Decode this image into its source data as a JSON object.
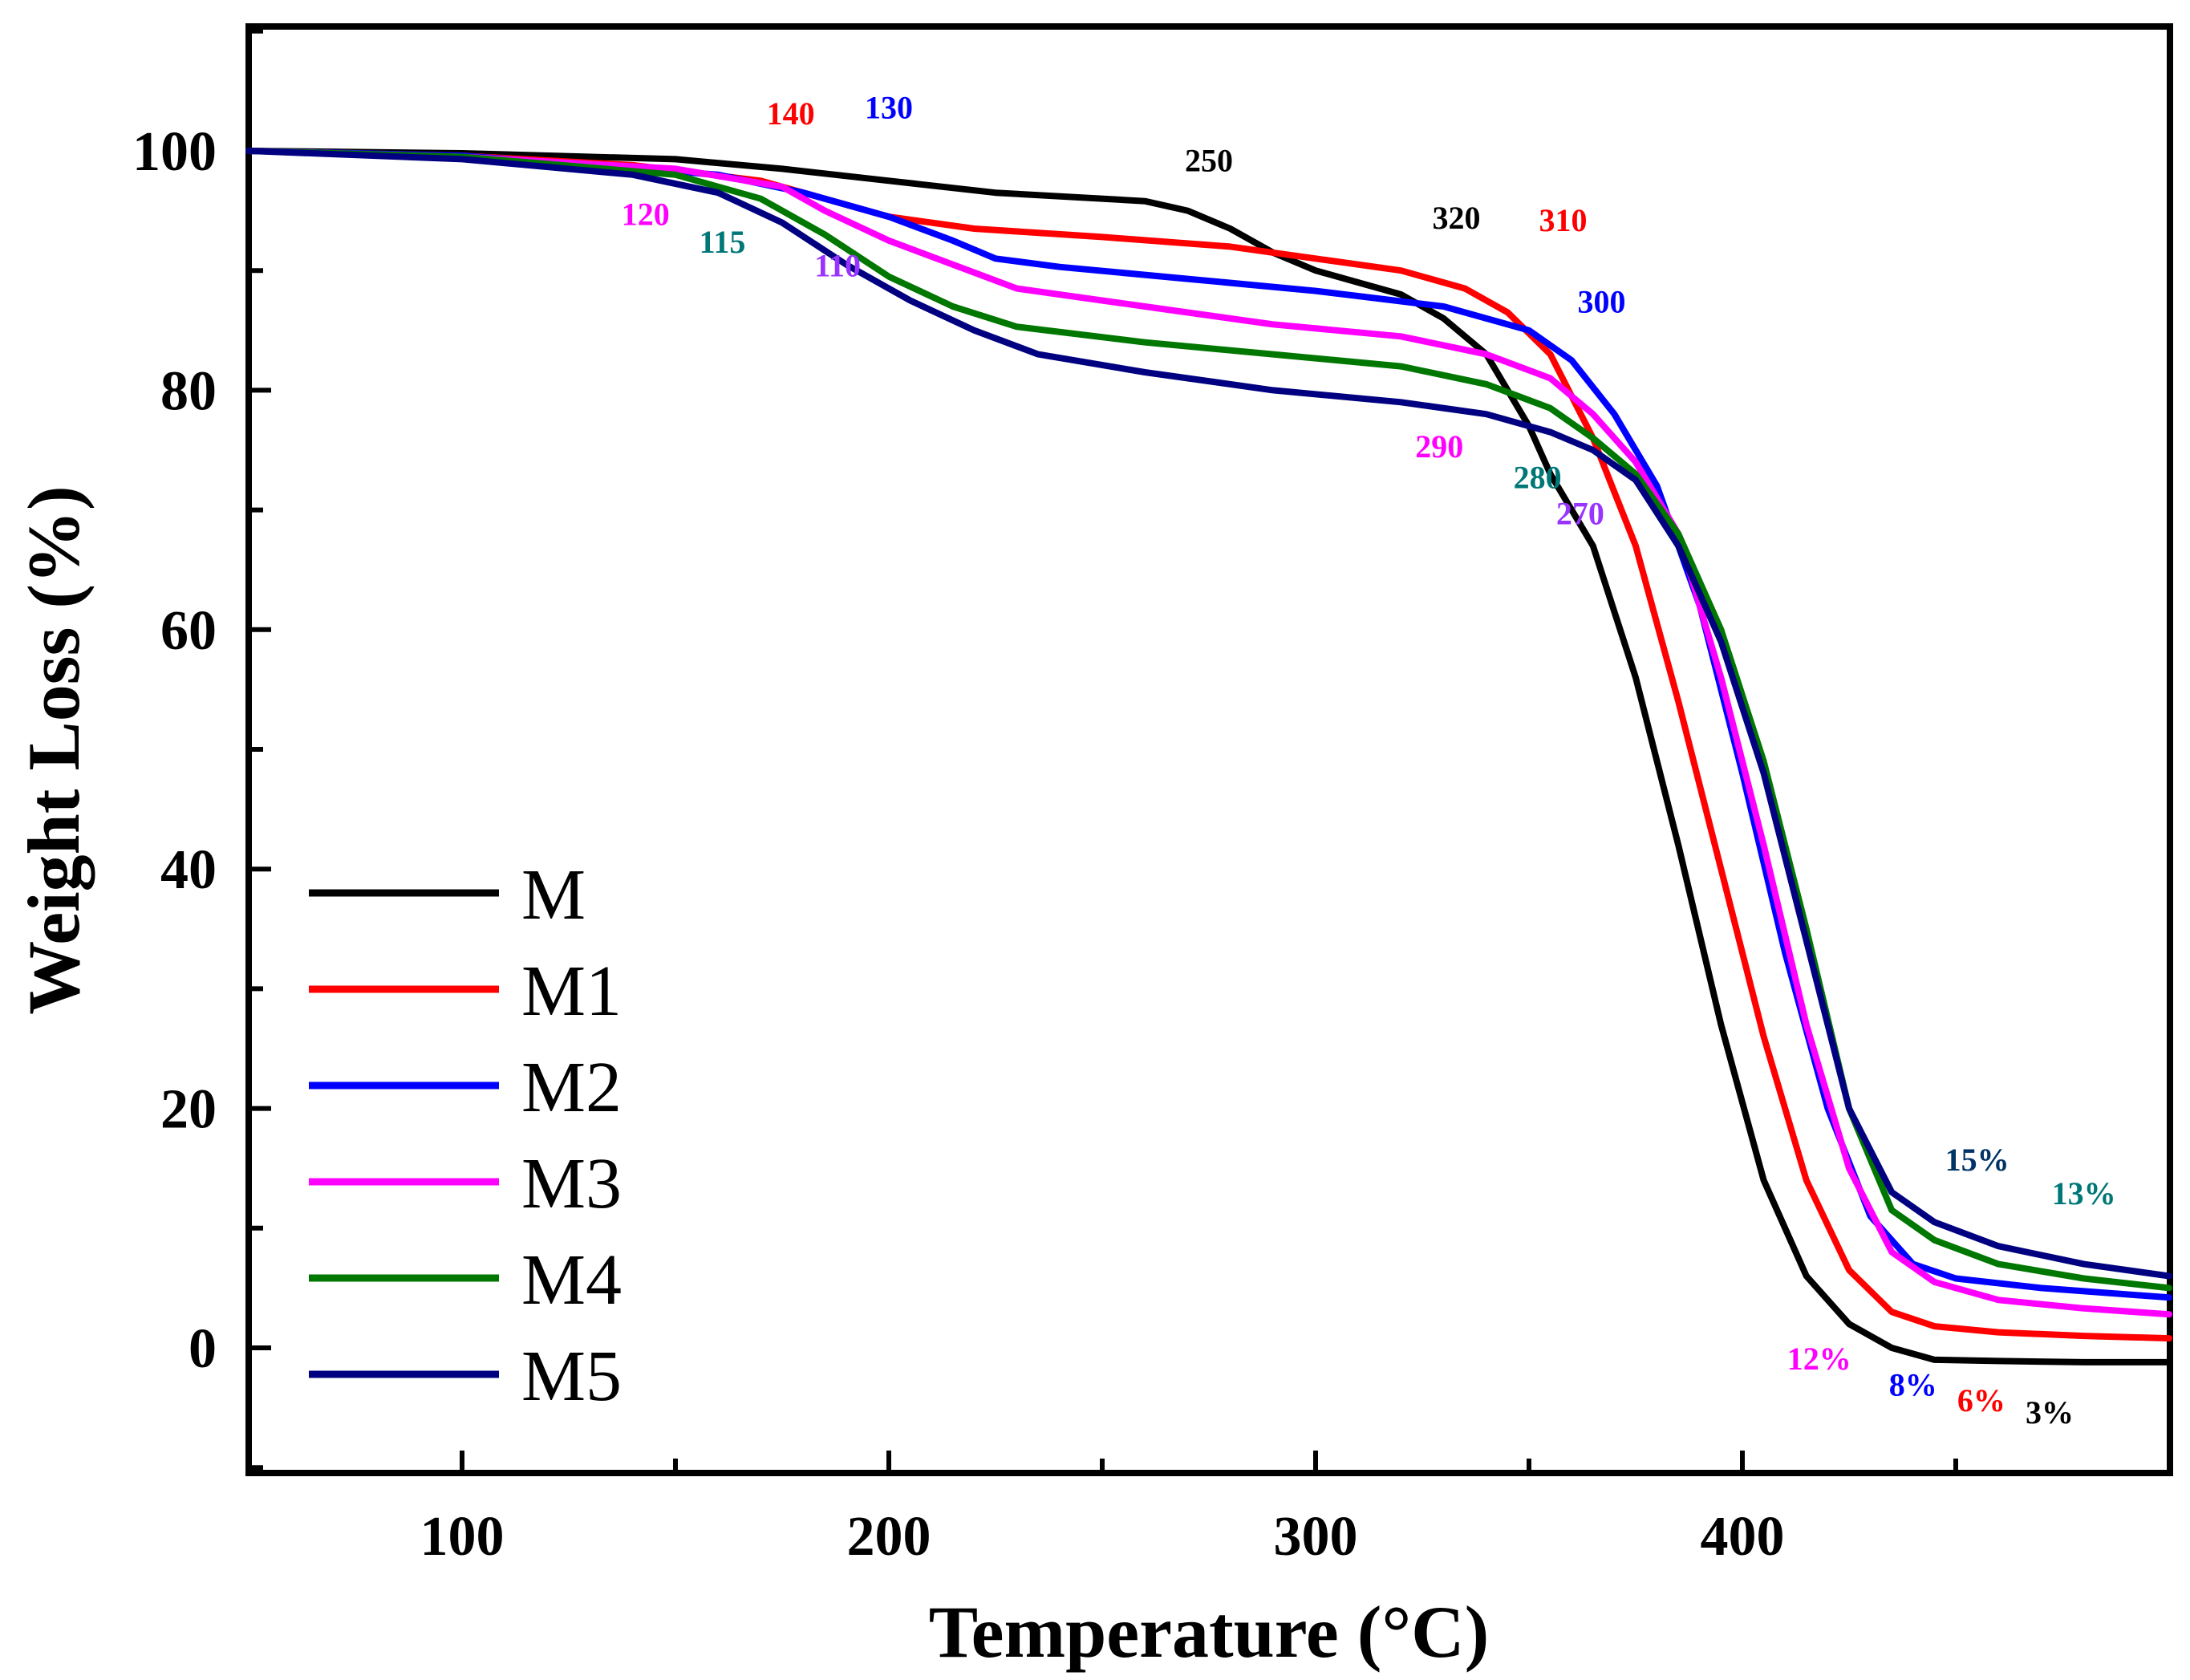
{
  "chart_data": {
    "type": "line",
    "title": "",
    "xlabel": "Temperature (°C)",
    "ylabel": "Weight Loss (%)",
    "xlim": [
      50,
      500
    ],
    "ylim": [
      -10,
      110
    ],
    "xticks": [
      100,
      200,
      300,
      400
    ],
    "yticks": [
      0,
      20,
      40,
      60,
      80,
      100
    ],
    "xtick_labels": [
      "100",
      "200",
      "300",
      "400"
    ],
    "ytick_labels": [
      "0",
      "20",
      "40",
      "60",
      "80",
      "100"
    ],
    "grid": false,
    "legend_position": "bottom-left",
    "series": [
      {
        "name": "M",
        "color": "#000000",
        "points": [
          [
            50,
            100
          ],
          [
            100,
            99.8
          ],
          [
            150,
            99.3
          ],
          [
            175,
            98.5
          ],
          [
            200,
            97.5
          ],
          [
            225,
            96.5
          ],
          [
            260,
            95.8
          ],
          [
            270,
            95
          ],
          [
            280,
            93.5
          ],
          [
            290,
            91.5
          ],
          [
            300,
            90
          ],
          [
            310,
            89
          ],
          [
            320,
            88
          ],
          [
            330,
            86
          ],
          [
            340,
            83
          ],
          [
            350,
            77
          ],
          [
            355,
            73
          ],
          [
            365,
            67
          ],
          [
            375,
            56
          ],
          [
            385,
            42
          ],
          [
            395,
            27
          ],
          [
            405,
            14
          ],
          [
            415,
            6
          ],
          [
            425,
            2
          ],
          [
            435,
            0
          ],
          [
            445,
            -1
          ],
          [
            460,
            -1.1
          ],
          [
            480,
            -1.2
          ],
          [
            500,
            -1.2
          ]
        ]
      },
      {
        "name": "M1",
        "color": "#ff0000",
        "points": [
          [
            50,
            100
          ],
          [
            100,
            99.6
          ],
          [
            140,
            98.8
          ],
          [
            170,
            97.5
          ],
          [
            180,
            96.5
          ],
          [
            200,
            94.5
          ],
          [
            220,
            93.5
          ],
          [
            250,
            92.8
          ],
          [
            280,
            92
          ],
          [
            300,
            91
          ],
          [
            320,
            90
          ],
          [
            335,
            88.5
          ],
          [
            345,
            86.5
          ],
          [
            355,
            83
          ],
          [
            365,
            76
          ],
          [
            375,
            67
          ],
          [
            385,
            54
          ],
          [
            395,
            40
          ],
          [
            405,
            26
          ],
          [
            415,
            14
          ],
          [
            425,
            6.5
          ],
          [
            435,
            3
          ],
          [
            445,
            1.8
          ],
          [
            460,
            1.3
          ],
          [
            480,
            1
          ],
          [
            500,
            0.8
          ]
        ]
      },
      {
        "name": "M2",
        "color": "#0000ff",
        "points": [
          [
            50,
            100
          ],
          [
            100,
            99.6
          ],
          [
            130,
            98.8
          ],
          [
            160,
            98
          ],
          [
            180,
            96.5
          ],
          [
            200,
            94.5
          ],
          [
            215,
            92.5
          ],
          [
            225,
            91
          ],
          [
            240,
            90.3
          ],
          [
            270,
            89.3
          ],
          [
            300,
            88.3
          ],
          [
            330,
            87
          ],
          [
            350,
            85
          ],
          [
            360,
            82.5
          ],
          [
            370,
            78
          ],
          [
            380,
            72
          ],
          [
            390,
            62
          ],
          [
            400,
            48
          ],
          [
            410,
            33
          ],
          [
            420,
            20
          ],
          [
            430,
            11
          ],
          [
            440,
            7
          ],
          [
            450,
            5.8
          ],
          [
            470,
            5
          ],
          [
            500,
            4.2
          ]
        ]
      },
      {
        "name": "M3",
        "color": "#ff00ff",
        "points": [
          [
            50,
            100
          ],
          [
            100,
            99.5
          ],
          [
            150,
            98.5
          ],
          [
            175,
            97
          ],
          [
            185,
            95
          ],
          [
            200,
            92.5
          ],
          [
            215,
            90.5
          ],
          [
            230,
            88.5
          ],
          [
            260,
            87
          ],
          [
            290,
            85.5
          ],
          [
            320,
            84.5
          ],
          [
            340,
            83
          ],
          [
            355,
            81
          ],
          [
            365,
            78
          ],
          [
            375,
            74
          ],
          [
            385,
            68
          ],
          [
            395,
            56
          ],
          [
            405,
            42
          ],
          [
            415,
            27
          ],
          [
            425,
            15
          ],
          [
            435,
            8
          ],
          [
            445,
            5.5
          ],
          [
            460,
            4
          ],
          [
            480,
            3.3
          ],
          [
            500,
            2.8
          ]
        ]
      },
      {
        "name": "M4",
        "color": "#007700",
        "points": [
          [
            50,
            100
          ],
          [
            100,
            99.5
          ],
          [
            150,
            98
          ],
          [
            170,
            96
          ],
          [
            185,
            93
          ],
          [
            200,
            89.5
          ],
          [
            215,
            87
          ],
          [
            230,
            85.3
          ],
          [
            260,
            84
          ],
          [
            290,
            83
          ],
          [
            320,
            82
          ],
          [
            340,
            80.5
          ],
          [
            355,
            78.5
          ],
          [
            365,
            76
          ],
          [
            375,
            73
          ],
          [
            385,
            68
          ],
          [
            395,
            60
          ],
          [
            405,
            49
          ],
          [
            415,
            35
          ],
          [
            425,
            20
          ],
          [
            435,
            11.5
          ],
          [
            445,
            9
          ],
          [
            460,
            7
          ],
          [
            480,
            5.8
          ],
          [
            500,
            5
          ]
        ]
      },
      {
        "name": "M5",
        "color": "#000080",
        "points": [
          [
            50,
            100
          ],
          [
            100,
            99.3
          ],
          [
            140,
            98
          ],
          [
            160,
            96.5
          ],
          [
            175,
            94
          ],
          [
            190,
            90.5
          ],
          [
            205,
            87.5
          ],
          [
            220,
            85
          ],
          [
            235,
            83
          ],
          [
            260,
            81.5
          ],
          [
            290,
            80
          ],
          [
            320,
            79
          ],
          [
            340,
            78
          ],
          [
            355,
            76.5
          ],
          [
            365,
            75
          ],
          [
            375,
            72.5
          ],
          [
            385,
            67
          ],
          [
            395,
            59
          ],
          [
            405,
            48
          ],
          [
            415,
            34
          ],
          [
            425,
            20
          ],
          [
            435,
            13
          ],
          [
            445,
            10.5
          ],
          [
            460,
            8.5
          ],
          [
            480,
            7
          ],
          [
            500,
            6
          ]
        ]
      }
    ],
    "annotations": [
      {
        "text": "140",
        "color": "#ff0000",
        "x": 177,
        "y": 102.2
      },
      {
        "text": "130",
        "color": "#0000ff",
        "x": 200,
        "y": 102.7
      },
      {
        "text": "250",
        "color": "#000000",
        "x": 275,
        "y": 98.3
      },
      {
        "text": "120",
        "color": "#ff00ff",
        "x": 143,
        "y": 93.8
      },
      {
        "text": "115",
        "color": "#007777",
        "x": 161,
        "y": 91.5
      },
      {
        "text": "110",
        "color": "#9933ff",
        "x": 188,
        "y": 89.5
      },
      {
        "text": "320",
        "color": "#000000",
        "x": 333,
        "y": 93.5
      },
      {
        "text": "310",
        "color": "#ff0000",
        "x": 358,
        "y": 93.3
      },
      {
        "text": "300",
        "color": "#0000ff",
        "x": 367,
        "y": 86.5
      },
      {
        "text": "290",
        "color": "#ff00ff",
        "x": 329,
        "y": 74.4
      },
      {
        "text": "280",
        "color": "#007777",
        "x": 352,
        "y": 71.8
      },
      {
        "text": "270",
        "color": "#9933ff",
        "x": 362,
        "y": 68.8
      },
      {
        "text": "15%",
        "color": "#003366",
        "x": 455,
        "y": 14.8
      },
      {
        "text": "13%",
        "color": "#007777",
        "x": 480,
        "y": 12
      },
      {
        "text": "12%",
        "color": "#ff00ff",
        "x": 418,
        "y": -1.8
      },
      {
        "text": "8%",
        "color": "#0000ff",
        "x": 440,
        "y": -4
      },
      {
        "text": "6%",
        "color": "#ff0000",
        "x": 456,
        "y": -5.3
      },
      {
        "text": "3%",
        "color": "#000000",
        "x": 472,
        "y": -6.3
      }
    ]
  }
}
